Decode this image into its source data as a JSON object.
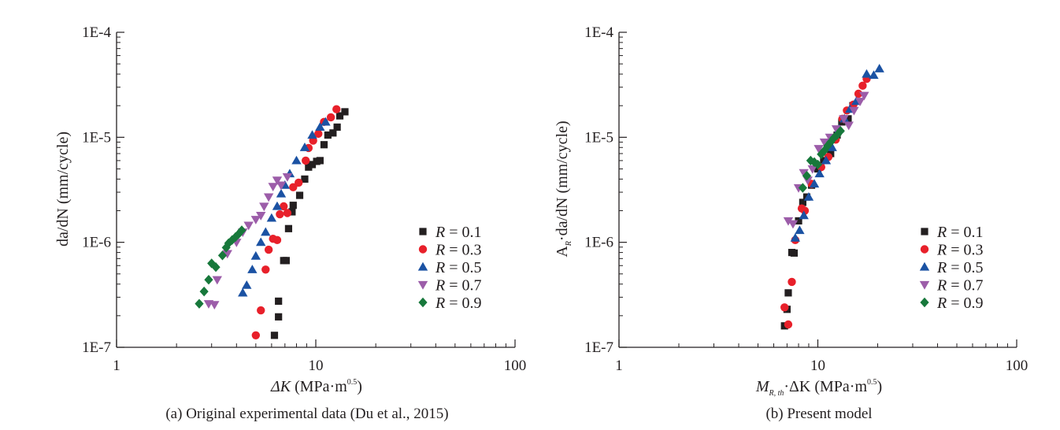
{
  "chart_data": [
    {
      "type": "scatter",
      "caption": "(a) Original experimental data (Du et al., 2015)",
      "xlabel": {
        "symbol": "ΔK",
        "unit_pre": " (MPa·m",
        "unit_sup": "0.5",
        "unit_post": ")"
      },
      "ylabel": "da/dN (mm/cycle)",
      "xscale": "log",
      "yscale": "log",
      "xlim": [
        1,
        100
      ],
      "ylim": [
        1e-07,
        0.0001
      ],
      "xticks": [
        {
          "v": 1,
          "label": "1"
        },
        {
          "v": 10,
          "label": "10"
        },
        {
          "v": 100,
          "label": "100"
        }
      ],
      "yticks": [
        {
          "v": 1e-07,
          "label": "1E-7"
        },
        {
          "v": 1e-06,
          "label": "1E-6"
        },
        {
          "v": 1e-05,
          "label": "1E-5"
        },
        {
          "v": 0.0001,
          "label": "1E-4"
        }
      ],
      "grid": false,
      "legend_position": "right",
      "series": [
        {
          "name": "R = 0.1",
          "marker": "square",
          "color": "#231f20",
          "points": [
            [
              6.2,
              1.3e-07
            ],
            [
              6.5,
              1.95e-07
            ],
            [
              6.5,
              2.75e-07
            ],
            [
              6.9,
              6.7e-07
            ],
            [
              7.1,
              6.7e-07
            ],
            [
              7.3,
              1.35e-06
            ],
            [
              7.6,
              1.95e-06
            ],
            [
              7.7,
              2.25e-06
            ],
            [
              8.3,
              2.8e-06
            ],
            [
              8.8,
              4e-06
            ],
            [
              9.2,
              5.2e-06
            ],
            [
              9.6,
              5.5e-06
            ],
            [
              10.1,
              5.9e-06
            ],
            [
              10.5,
              6e-06
            ],
            [
              11.0,
              8.5e-06
            ],
            [
              11.5,
              1.05e-05
            ],
            [
              12.2,
              1.1e-05
            ],
            [
              12.8,
              1.25e-05
            ],
            [
              13.2,
              1.6e-05
            ],
            [
              14.0,
              1.75e-05
            ]
          ]
        },
        {
          "name": "R = 0.3",
          "marker": "circle",
          "color": "#e8202a",
          "points": [
            [
              5.0,
              1.3e-07
            ],
            [
              5.3,
              2.25e-07
            ],
            [
              5.6,
              5.5e-07
            ],
            [
              5.8,
              8.5e-07
            ],
            [
              6.1,
              1.08e-06
            ],
            [
              6.4,
              1.05e-06
            ],
            [
              6.6,
              1.85e-06
            ],
            [
              6.9,
              2.2e-06
            ],
            [
              7.2,
              1.9e-06
            ],
            [
              7.7,
              3.35e-06
            ],
            [
              8.2,
              3.7e-06
            ],
            [
              8.9,
              6e-06
            ],
            [
              9.2,
              7.9e-06
            ],
            [
              9.7,
              9.3e-06
            ],
            [
              10.3,
              1.08e-05
            ],
            [
              11.0,
              1.4e-05
            ],
            [
              11.9,
              1.55e-05
            ],
            [
              12.7,
              1.85e-05
            ]
          ]
        },
        {
          "name": "R = 0.5",
          "marker": "triangle",
          "color": "#1b52a3",
          "points": [
            [
              4.3,
              3.3e-07
            ],
            [
              4.5,
              3.9e-07
            ],
            [
              4.8,
              5.5e-07
            ],
            [
              5.0,
              7.4e-07
            ],
            [
              5.3,
              1e-06
            ],
            [
              5.6,
              1.25e-06
            ],
            [
              6.0,
              1.7e-06
            ],
            [
              6.4,
              2.2e-06
            ],
            [
              6.7,
              2.9e-06
            ],
            [
              7.0,
              3.5e-06
            ],
            [
              7.4,
              4.5e-06
            ],
            [
              8.0,
              6e-06
            ],
            [
              8.8,
              8e-06
            ],
            [
              9.6,
              1.05e-05
            ],
            [
              10.5,
              1.25e-05
            ],
            [
              11.2,
              1.4e-05
            ]
          ]
        },
        {
          "name": "R = 0.7",
          "marker": "triangle-down",
          "color": "#9c5da9",
          "points": [
            [
              2.9,
              2.6e-07
            ],
            [
              3.1,
              2.55e-07
            ],
            [
              3.2,
              4.4e-07
            ],
            [
              3.6,
              7.8e-07
            ],
            [
              4.0,
              1e-06
            ],
            [
              4.3,
              1.25e-06
            ],
            [
              4.6,
              1.45e-06
            ],
            [
              5.0,
              1.65e-06
            ],
            [
              5.3,
              1.8e-06
            ],
            [
              5.5,
              2.2e-06
            ],
            [
              5.8,
              2.7e-06
            ],
            [
              6.1,
              3.4e-06
            ],
            [
              6.4,
              3.9e-06
            ],
            [
              6.7,
              3.5e-06
            ],
            [
              7.2,
              4.2e-06
            ]
          ]
        },
        {
          "name": "R = 0.9",
          "marker": "diamond",
          "color": "#17783b",
          "points": [
            [
              2.6,
              2.6e-07
            ],
            [
              2.75,
              3.4e-07
            ],
            [
              2.9,
              4.4e-07
            ],
            [
              3.0,
              6.3e-07
            ],
            [
              3.15,
              5.8e-07
            ],
            [
              3.4,
              7.5e-07
            ],
            [
              3.55,
              8.9e-07
            ],
            [
              3.65,
              9.8e-07
            ],
            [
              3.8,
              1.05e-06
            ],
            [
              3.95,
              1.12e-06
            ],
            [
              4.1,
              1.2e-06
            ],
            [
              4.25,
              1.3e-06
            ]
          ]
        }
      ]
    },
    {
      "type": "scatter",
      "caption": "(b) Present model",
      "xlabel": {
        "symbol": "M",
        "sub": "R, th",
        "mid": "·ΔK",
        "unit_pre": " (MPa·m",
        "unit_sup": "0.5",
        "unit_post": ")"
      },
      "ylabel": {
        "prefix": "A",
        "sub": "R",
        "rest": "·da/dN (mm/cycle)"
      },
      "xscale": "log",
      "yscale": "log",
      "xlim": [
        1,
        100
      ],
      "ylim": [
        1e-07,
        0.0001
      ],
      "xticks": [
        {
          "v": 1,
          "label": "1"
        },
        {
          "v": 10,
          "label": "10"
        },
        {
          "v": 100,
          "label": "100"
        }
      ],
      "yticks": [
        {
          "v": 1e-07,
          "label": "1E-7"
        },
        {
          "v": 1e-06,
          "label": "1E-6"
        },
        {
          "v": 1e-05,
          "label": "1E-5"
        },
        {
          "v": 0.0001,
          "label": "1E-4"
        }
      ],
      "grid": false,
      "legend_position": "right",
      "series": [
        {
          "name": "R = 0.1",
          "marker": "square",
          "color": "#231f20",
          "points": [
            [
              6.8,
              1.6e-07
            ],
            [
              7.0,
              2.3e-07
            ],
            [
              7.1,
              3.3e-07
            ],
            [
              7.4,
              8e-07
            ],
            [
              7.6,
              7.9e-07
            ],
            [
              8.0,
              1.6e-06
            ],
            [
              8.4,
              2.4e-06
            ],
            [
              8.8,
              2.7e-06
            ],
            [
              9.3,
              3.5e-06
            ],
            [
              10.0,
              5e-06
            ],
            [
              10.7,
              6e-06
            ],
            [
              11.6,
              7e-06
            ],
            [
              12.5,
              1.05e-05
            ],
            [
              13.2,
              1.4e-05
            ],
            [
              14.2,
              1.5e-05
            ],
            [
              15.0,
              2e-05
            ]
          ]
        },
        {
          "name": "R = 0.3",
          "marker": "circle",
          "color": "#e8202a",
          "points": [
            [
              6.8,
              2.4e-07
            ],
            [
              7.1,
              1.65e-07
            ],
            [
              7.4,
              4.2e-07
            ],
            [
              7.7,
              1.05e-06
            ],
            [
              8.3,
              2.1e-06
            ],
            [
              8.6,
              2e-06
            ],
            [
              9.3,
              3.6e-06
            ],
            [
              10.4,
              5.2e-06
            ],
            [
              11.3,
              6.5e-06
            ],
            [
              12.3,
              9.5e-06
            ],
            [
              13.3,
              1.5e-05
            ],
            [
              14.0,
              1.8e-05
            ],
            [
              15.1,
              2.05e-05
            ],
            [
              16.0,
              2.6e-05
            ],
            [
              16.8,
              3.1e-05
            ],
            [
              17.6,
              3.6e-05
            ]
          ]
        },
        {
          "name": "R = 0.5",
          "marker": "triangle",
          "color": "#1b52a3",
          "points": [
            [
              7.7,
              1.1e-06
            ],
            [
              8.1,
              1.3e-06
            ],
            [
              8.5,
              1.8e-06
            ],
            [
              9.0,
              2.7e-06
            ],
            [
              9.6,
              3.6e-06
            ],
            [
              10.2,
              4.5e-06
            ],
            [
              11.0,
              6e-06
            ],
            [
              11.8,
              8e-06
            ],
            [
              12.8,
              1.2e-05
            ],
            [
              13.6,
              1.5e-05
            ],
            [
              14.5,
              1.85e-05
            ],
            [
              15.6,
              2.2e-05
            ],
            [
              17.6,
              4e-05
            ],
            [
              19.1,
              3.9e-05
            ],
            [
              20.4,
              4.5e-05
            ]
          ]
        },
        {
          "name": "R = 0.7",
          "marker": "triangle-down",
          "color": "#9c5da9",
          "points": [
            [
              7.1,
              1.6e-06
            ],
            [
              7.5,
              1.5e-06
            ],
            [
              8.0,
              3.3e-06
            ],
            [
              8.5,
              4.6e-06
            ],
            [
              8.9,
              3.9e-06
            ],
            [
              9.4,
              5e-06
            ],
            [
              10.1,
              7.8e-06
            ],
            [
              10.8,
              9e-06
            ],
            [
              11.5,
              1e-05
            ],
            [
              12.4,
              1.2e-05
            ],
            [
              13.5,
              1.5e-05
            ],
            [
              14.3,
              1.3e-05
            ],
            [
              15.2,
              1.8e-05
            ],
            [
              16.3,
              2.2e-05
            ],
            [
              17.1,
              2.5e-05
            ]
          ]
        },
        {
          "name": "R = 0.9",
          "marker": "diamond",
          "color": "#17783b",
          "points": [
            [
              8.4,
              3.3e-06
            ],
            [
              8.8,
              4.3e-06
            ],
            [
              9.2,
              6e-06
            ],
            [
              9.6,
              5.8e-06
            ],
            [
              10.0,
              5.5e-06
            ],
            [
              10.4,
              6.9e-06
            ],
            [
              10.8,
              7.5e-06
            ],
            [
              11.2,
              8.3e-06
            ],
            [
              11.6,
              9e-06
            ],
            [
              12.0,
              9.8e-06
            ],
            [
              12.5,
              1.05e-05
            ],
            [
              13.0,
              1.15e-05
            ]
          ]
        }
      ]
    }
  ]
}
